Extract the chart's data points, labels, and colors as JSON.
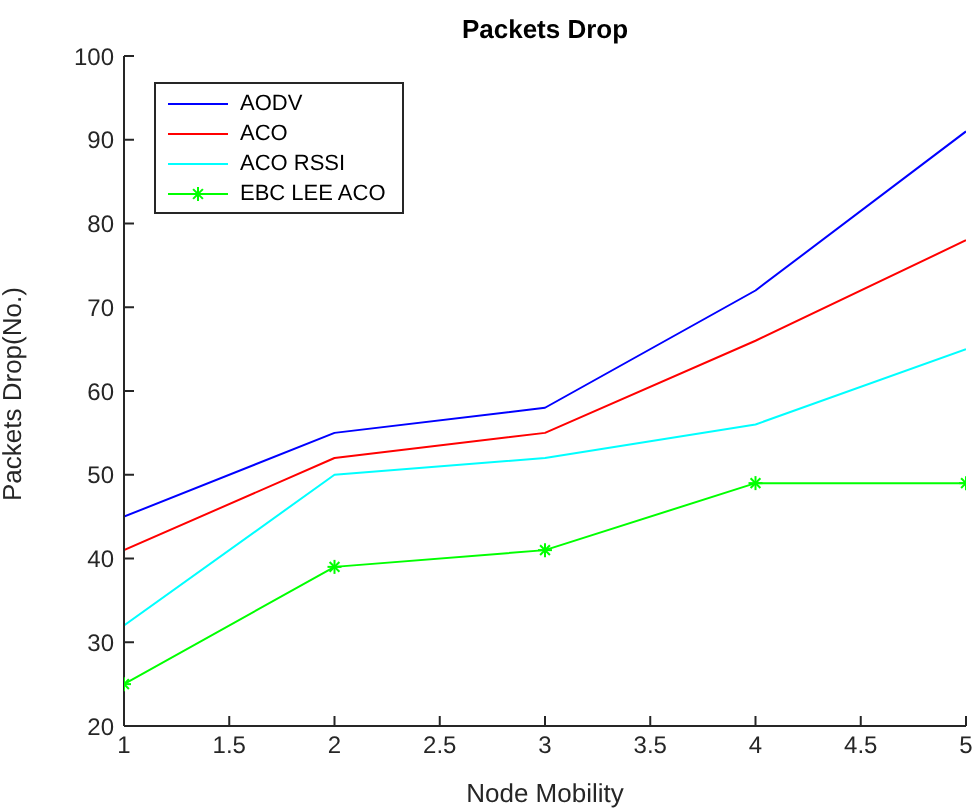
{
  "chart_data": {
    "type": "line",
    "title": "Packets Drop",
    "xlabel": "Node Mobility",
    "ylabel": "Packets Drop(No.)",
    "x": [
      1,
      2,
      3,
      4,
      5
    ],
    "series": [
      {
        "name": "AODV",
        "color": "#0000ff",
        "values": [
          45,
          55,
          58,
          72,
          91
        ]
      },
      {
        "name": "ACO",
        "color": "#ff0000",
        "values": [
          41,
          52,
          55,
          66,
          78
        ]
      },
      {
        "name": "ACO RSSI",
        "color": "#00ffff",
        "values": [
          32,
          50,
          52,
          56,
          65
        ]
      },
      {
        "name": "EBC LEE ACO",
        "color": "#00ff00",
        "values": [
          25,
          39,
          41,
          49,
          49
        ],
        "marker": "cross"
      }
    ],
    "xlim": [
      1,
      5
    ],
    "xticks": [
      1,
      1.5,
      2,
      2.5,
      3,
      3.5,
      4,
      4.5,
      5
    ],
    "ylim": [
      20,
      100
    ],
    "yticks": [
      20,
      30,
      40,
      50,
      60,
      70,
      80,
      90,
      100
    ],
    "grid": false,
    "legend": "top left",
    "line_style": "solid"
  }
}
